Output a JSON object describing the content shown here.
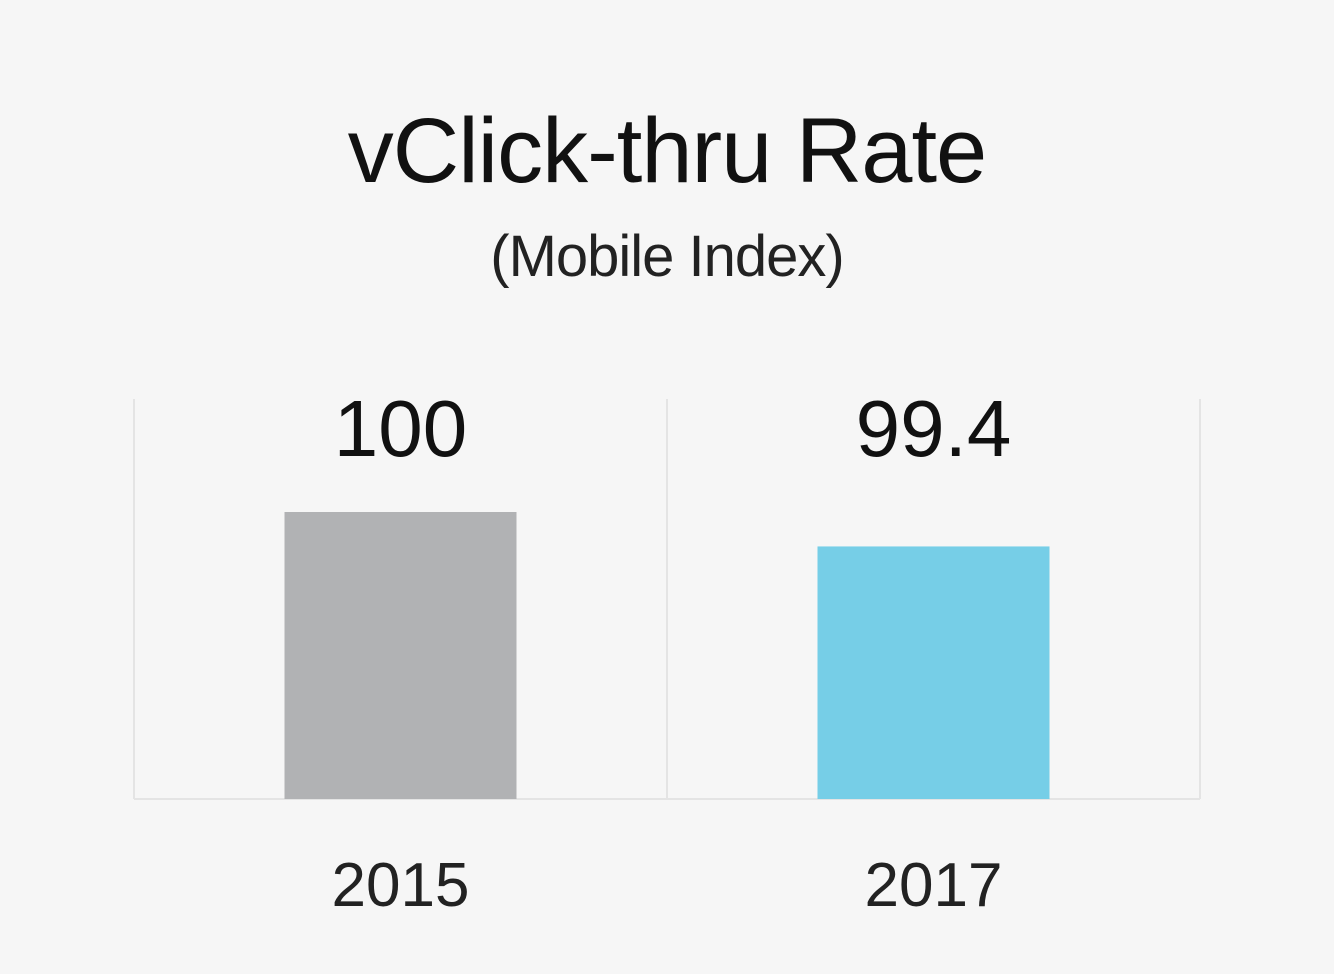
{
  "chart_data": {
    "type": "bar",
    "title": "vClick-thru Rate",
    "subtitle": "(Mobile Index)",
    "categories": [
      "2015",
      "2017"
    ],
    "values": [
      100,
      99.4
    ],
    "data_labels": [
      "100",
      "99.4"
    ],
    "colors": [
      "#b1b2b4",
      "#76cee7"
    ],
    "ylim": [
      95,
      105
    ],
    "grid": false,
    "legend": "none"
  }
}
